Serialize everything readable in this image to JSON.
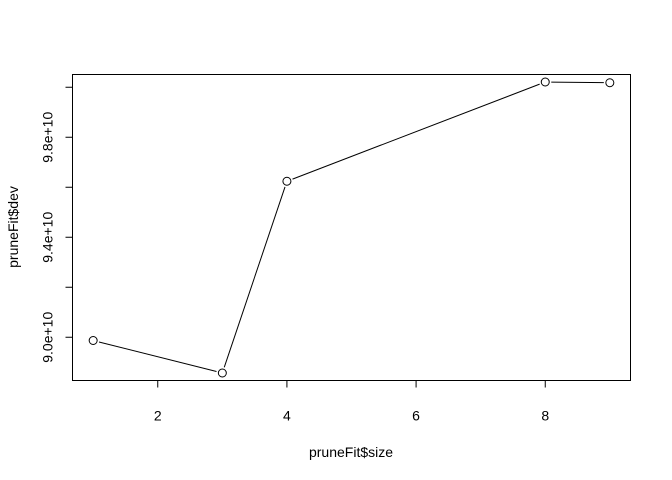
{
  "chart_data": {
    "type": "line",
    "title": "",
    "xlabel": "pruneFit$size",
    "ylabel": "pruneFit$dev",
    "x": [
      1,
      3,
      4,
      8,
      9
    ],
    "series": [
      {
        "values": [
          89870000000,
          88570000000,
          96240000000,
          100210000000,
          100180000000
        ]
      }
    ],
    "xlim": [
      0.68,
      9.32
    ],
    "ylim": [
      88270000000,
      100510000000
    ],
    "xticks": [
      2,
      4,
      6,
      8
    ],
    "xtick_labels": [
      "2",
      "4",
      "6",
      "8"
    ],
    "yticks": [
      90000000000,
      92000000000,
      94000000000,
      96000000000,
      98000000000,
      100000000000
    ],
    "ytick_labels": [
      "9.0e+10",
      "",
      "9.4e+10",
      "",
      "9.8e+10",
      ""
    ],
    "grid": false,
    "legend": "none",
    "marker": "open-circle",
    "line_color": "#000000"
  }
}
